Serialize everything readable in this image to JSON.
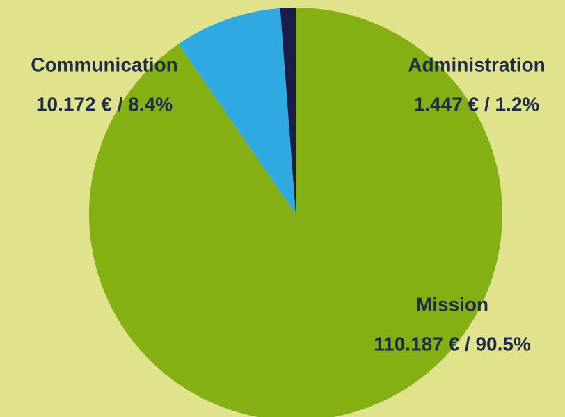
{
  "chart_data": {
    "type": "pie",
    "categories": [
      "Mission",
      "Communication",
      "Administration"
    ],
    "values": [
      90.5,
      8.4,
      1.2
    ],
    "value_labels": [
      "110.187 € / 90.5%",
      "10.172 € / 8.4%",
      "1.447 € / 1.2%"
    ],
    "colors": [
      "#84b013",
      "#2fa9e1",
      "#1a1d4a"
    ]
  }
}
